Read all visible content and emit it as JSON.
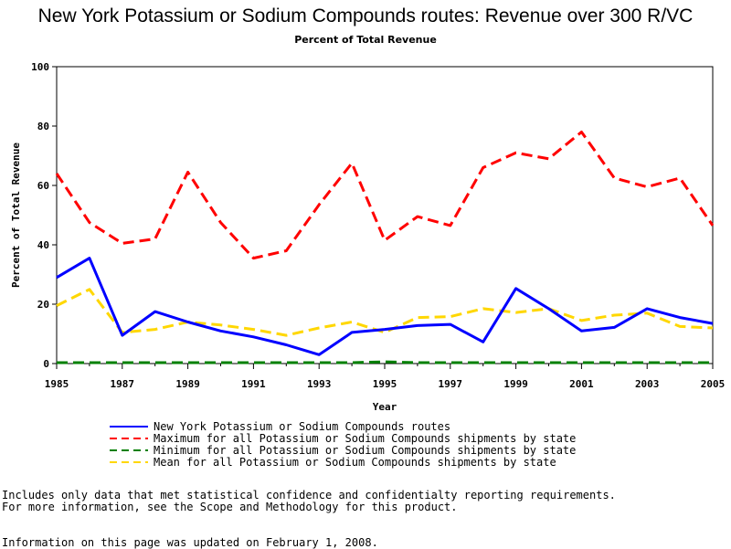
{
  "chart_data": {
    "type": "line",
    "title": "New York Potassium or Sodium Compounds routes: Revenue over 300 R/VC",
    "subtitle": "Percent of Total Revenue",
    "xlabel": "Year",
    "ylabel": "Percent of Total Revenue",
    "ylim": [
      0,
      100
    ],
    "xlim": [
      1985,
      2005
    ],
    "x_ticks": [
      1985,
      1987,
      1989,
      1991,
      1993,
      1995,
      1997,
      1999,
      2001,
      2003,
      2005
    ],
    "y_ticks": [
      0,
      20,
      40,
      60,
      80,
      100
    ],
    "x": [
      1985,
      1986,
      1987,
      1988,
      1989,
      1990,
      1991,
      1992,
      1993,
      1994,
      1995,
      1996,
      1997,
      1998,
      1999,
      2000,
      2001,
      2002,
      2003,
      2004,
      2005
    ],
    "series": [
      {
        "name": "New York Potassium or Sodium Compounds routes",
        "color": "#0000ff",
        "style": "solid",
        "values": [
          29,
          35.5,
          9.5,
          17.5,
          14,
          11,
          9,
          6.3,
          3,
          10.5,
          11.5,
          12.8,
          13.2,
          7.3,
          25.3,
          18.5,
          11,
          12.2,
          18.5,
          15.5,
          13.5
        ]
      },
      {
        "name": "Maximum for all Potassium or Sodium Compounds shipments by state",
        "color": "#ff0000",
        "style": "dashed",
        "values": [
          64,
          47.5,
          40.5,
          42,
          64.5,
          47.5,
          35.5,
          38,
          53.5,
          67.5,
          41.5,
          49.5,
          46.5,
          66,
          71,
          69,
          78,
          62.5,
          59.5,
          62.5,
          46.5
        ]
      },
      {
        "name": "Minimum for all Potassium or Sodium Compounds shipments by state",
        "color": "#008000",
        "style": "dashed",
        "values": [
          0.3,
          0.3,
          0.3,
          0.3,
          0.3,
          0.3,
          0.3,
          0.3,
          0.3,
          0.3,
          0.6,
          0.3,
          0.3,
          0.3,
          0.3,
          0.3,
          0.3,
          0.3,
          0.3,
          0.3,
          0.3
        ]
      },
      {
        "name": "Mean for all Potassium or Sodium Compounds shipments by state",
        "color": "#ffd700",
        "style": "dashed",
        "values": [
          19.5,
          25,
          10.5,
          11.5,
          14,
          13,
          11.5,
          9.5,
          12,
          14,
          10.5,
          15.5,
          15.8,
          18.5,
          17.2,
          18.5,
          14.5,
          16.3,
          17,
          12.5,
          12
        ]
      }
    ],
    "grid": false,
    "legend_position": "bottom"
  },
  "notes": {
    "line1": "Includes only data that met statistical confidence and confidentialty reporting requirements.",
    "line2": "For more information, see the Scope and Methodology for this product.",
    "updated": "Information on this page was updated on February 1, 2008."
  }
}
